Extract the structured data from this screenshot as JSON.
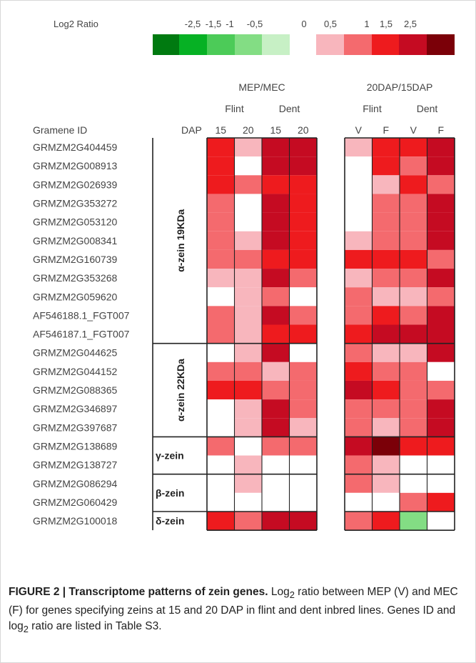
{
  "chart_data": {
    "type": "heatmap",
    "legend": {
      "title": "Log2 Ratio",
      "negative": [
        {
          "label": "-2,5",
          "color": "#007a10"
        },
        {
          "label": "-1,5",
          "color": "#06b124"
        },
        {
          "label": "-1",
          "color": "#4ccb58"
        },
        {
          "label": "-0,5",
          "color": "#83dd84"
        },
        {
          "label": "0",
          "color": "#c7f0c5"
        }
      ],
      "positive": [
        {
          "label": "0,5",
          "color": "#f8b6bd"
        },
        {
          "label": "1",
          "color": "#f46a6e"
        },
        {
          "label": "1,5",
          "color": "#ee1b1e"
        },
        {
          "label": "2,5",
          "color": "#c50b22"
        },
        {
          "label": "",
          "color": "#7b0008"
        }
      ],
      "blank_color": "#ffffff"
    },
    "panels": [
      {
        "title": "MEP/MEC",
        "groups": [
          {
            "label": "Flint",
            "columns": [
              "15",
              "20"
            ]
          },
          {
            "label": "Dent",
            "columns": [
              "15",
              "20"
            ]
          }
        ]
      },
      {
        "title": "20DAP/15DAP",
        "groups": [
          {
            "label": "Flint",
            "columns": [
              "V",
              "F"
            ]
          },
          {
            "label": "Dent",
            "columns": [
              "V",
              "F"
            ]
          }
        ]
      }
    ],
    "row_header": "Gramene ID",
    "column_header": "DAP",
    "row_groups": [
      {
        "label": "α-zein 19KDa",
        "start": 0,
        "end": 10
      },
      {
        "label": "α-zein 22KDa",
        "start": 11,
        "end": 15
      },
      {
        "label": "γ-zein",
        "start": 16,
        "end": 17
      },
      {
        "label": "β-zein",
        "start": 18,
        "end": 19
      },
      {
        "label": "δ-zein",
        "start": 20,
        "end": 20
      }
    ],
    "rows": [
      {
        "id": "GRMZM2G404459",
        "mep_mec": [
          1.5,
          0.5,
          2.5,
          2.5
        ],
        "dap_ratio": [
          0.5,
          1.5,
          1.5,
          2.5
        ]
      },
      {
        "id": "GRMZM2G008913",
        "mep_mec": [
          1.5,
          0,
          2.5,
          2.5
        ],
        "dap_ratio": [
          0,
          1.5,
          1,
          2.5
        ]
      },
      {
        "id": "GRMZM2G026939",
        "mep_mec": [
          1.5,
          1,
          1.5,
          1.5
        ],
        "dap_ratio": [
          0,
          0.5,
          1.5,
          1
        ]
      },
      {
        "id": "GRMZM2G353272",
        "mep_mec": [
          1,
          0,
          2.5,
          1.5
        ],
        "dap_ratio": [
          0,
          1,
          1,
          2.5
        ]
      },
      {
        "id": "GRMZM2G053120",
        "mep_mec": [
          1,
          0,
          2.5,
          1.5
        ],
        "dap_ratio": [
          0,
          1,
          1,
          2.5
        ]
      },
      {
        "id": "GRMZM2G008341",
        "mep_mec": [
          1,
          0.5,
          2.5,
          1.5
        ],
        "dap_ratio": [
          0.5,
          1,
          1,
          2.5
        ]
      },
      {
        "id": "GRMZM2G160739",
        "mep_mec": [
          1,
          1,
          1.5,
          1.5
        ],
        "dap_ratio": [
          1.5,
          1.5,
          1.5,
          1
        ]
      },
      {
        "id": "GRMZM2G353268",
        "mep_mec": [
          0.5,
          0.5,
          2.5,
          1
        ],
        "dap_ratio": [
          0.5,
          1,
          1,
          2.5
        ]
      },
      {
        "id": "GRMZM2G059620",
        "mep_mec": [
          0,
          0.5,
          1,
          0
        ],
        "dap_ratio": [
          1,
          0.5,
          0.5,
          1
        ]
      },
      {
        "id": "AF546188.1_FGT007",
        "mep_mec": [
          1,
          0.5,
          2.5,
          1
        ],
        "dap_ratio": [
          1,
          1.5,
          1,
          2.5
        ]
      },
      {
        "id": "AF546187.1_FGT007",
        "mep_mec": [
          1,
          0.5,
          1.5,
          1.5
        ],
        "dap_ratio": [
          1.5,
          2.5,
          2.5,
          2.5
        ]
      },
      {
        "id": "GRMZM2G044625",
        "mep_mec": [
          0,
          0.5,
          2.5,
          0
        ],
        "dap_ratio": [
          1,
          0.5,
          0.5,
          2.5
        ]
      },
      {
        "id": "GRMZM2G044152",
        "mep_mec": [
          1,
          1,
          0.5,
          1
        ],
        "dap_ratio": [
          1.5,
          1,
          1,
          0
        ]
      },
      {
        "id": "GRMZM2G088365",
        "mep_mec": [
          1.5,
          1.5,
          1,
          1
        ],
        "dap_ratio": [
          2.5,
          1.5,
          1,
          1
        ]
      },
      {
        "id": "GRMZM2G346897",
        "mep_mec": [
          0,
          0.5,
          2.5,
          1
        ],
        "dap_ratio": [
          1,
          1,
          1,
          2.5
        ]
      },
      {
        "id": "GRMZM2G397687",
        "mep_mec": [
          0,
          0.5,
          2.5,
          0.5
        ],
        "dap_ratio": [
          1,
          0.5,
          1,
          2.5
        ]
      },
      {
        "id": "GRMZM2G138689",
        "mep_mec": [
          1,
          0,
          1,
          1
        ],
        "dap_ratio": [
          2.5,
          3,
          1.5,
          1.5
        ]
      },
      {
        "id": "GRMZM2G138727",
        "mep_mec": [
          0,
          0.5,
          0,
          0
        ],
        "dap_ratio": [
          1,
          0.5,
          0,
          0
        ]
      },
      {
        "id": "GRMZM2G086294",
        "mep_mec": [
          0,
          0.5,
          0,
          0
        ],
        "dap_ratio": [
          1,
          0.5,
          0,
          0
        ]
      },
      {
        "id": "GRMZM2G060429",
        "mep_mec": [
          0,
          0,
          0,
          0
        ],
        "dap_ratio": [
          0,
          0,
          1,
          1.5
        ]
      },
      {
        "id": "GRMZM2G100018",
        "mep_mec": [
          1.5,
          1,
          2.5,
          2.5
        ],
        "dap_ratio": [
          1,
          1.5,
          -0.5,
          0
        ]
      }
    ]
  },
  "caption": {
    "label": "FIGURE 2 | Transcriptome patterns of zein genes.",
    "text_1": " Log",
    "sub_1": "2",
    "text_2": " ratio between MEP (V) and MEC (F) for genes specifying zeins at 15 and 20 DAP in flint and dent inbred lines. Genes ID and log",
    "sub_2": "2",
    "text_3": " ratio are listed in Table S3."
  }
}
